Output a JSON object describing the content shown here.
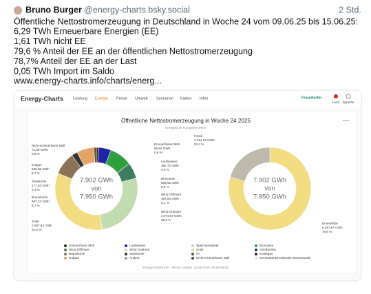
{
  "post": {
    "author": "Bruno Burger",
    "handle": "@energy-charts.bsky.social",
    "time": "2 Std.",
    "lines": [
      "Öffentliche Nettostromerzeugung in Deutschland in Woche 24 vom 09.06.25 bis 15.06.25:",
      "6,29 TWh Erneuerbare Energien (EE)",
      "1,61 TWh nicht EE",
      "79,6 % Anteil der EE an der öffentlichen Nettostromerzeugung",
      "78,7% Anteil der EE an der Last",
      "0,05 TWh Import im Saldo",
      "www.energy-charts.info/charts/energ..."
    ]
  },
  "card": {
    "logo": "Energy-Charts",
    "menu": [
      "Leistung",
      "Energie",
      "Preise",
      "Umwelt",
      "Szenarien",
      "Karten",
      "Infos"
    ],
    "brand": "Fraunhofer",
    "land": "Land",
    "sprache": "Sprache",
    "title": "Öffentliche Nettostromerzeugung in Woche 24 2025",
    "subtitle": "Energetisch korrigierte Werte",
    "center": [
      "7.902 GWh",
      "von",
      "7.950 GWh"
    ],
    "charts": [
      {
        "type": "donut",
        "segments": [
          {
            "name": "Erneuerbarer Müll",
            "value": 66.82,
            "value_label": "66,82 GWh",
            "percent": "0,8 %",
            "color": "#3b2a10"
          },
          {
            "name": "Laufwasser",
            "value": 380.72,
            "value_label": "380,72 GWh",
            "percent": "4,8 %",
            "color": "#1f24a8"
          },
          {
            "name": "Biomasse",
            "value": 682.92,
            "value_label": "682,92 GWh",
            "percent": "8,6 %",
            "color": "#2f9e3c"
          },
          {
            "name": "Wind Offshore",
            "value": 484.64,
            "value_label": "484,64 GWh",
            "percent": "6,1 %",
            "color": "#3f7d63"
          },
          {
            "name": "Wind Onshore",
            "value": 2074.67,
            "value_label": "2.074,67 GWh",
            "percent": "26,3 %",
            "color": "#c3dbb0"
          },
          {
            "name": "Solar",
            "value": 2567.94,
            "value_label": "2.567,94 GWh",
            "percent": "32,5 %",
            "color": "#f2dc82"
          },
          {
            "name": "Braunkohle",
            "value": 687.23,
            "value_label": "687,23 GWh",
            "percent": "8,7 %",
            "color": "#8a7357"
          },
          {
            "name": "Steinkohle",
            "value": 177.83,
            "value_label": "177,83 GWh",
            "percent": "2,3 %",
            "color": "#333333"
          },
          {
            "name": "Erdgas",
            "value": 526.85,
            "value_label": "526,85 GWh",
            "percent": "6,7 %",
            "color": "#e3a468"
          },
          {
            "name": "Nicht-erneuerbarer Müll",
            "value": 73.35,
            "value_label": "73,35 GWh",
            "percent": "0,9 %",
            "color": "#5a4628"
          }
        ]
      },
      {
        "type": "donut",
        "segments": [
          {
            "name": "Erneuerbar",
            "value": 6287.67,
            "value_label": "6.287,67 GWh",
            "percent": "79,6 %",
            "color": "#f2dc82"
          },
          {
            "name": "Fossil",
            "value": 1614.33,
            "value_label": "1.614,33 GWh",
            "percent": "20,4 %",
            "color": "#bfb8ac"
          }
        ]
      }
    ],
    "legend": [
      {
        "name": "Erneuerbarer Müll",
        "color": "#3b2a10"
      },
      {
        "name": "Laufwasser",
        "color": "#1f24a8"
      },
      {
        "name": "Speicherwasser",
        "color": "#c9c9c9"
      },
      {
        "name": "Biomasse",
        "color": "#2f9e3c"
      },
      {
        "name": "Wind Offshore",
        "color": "#3f7d63"
      },
      {
        "name": "Wind Onshore",
        "color": "#c3dbb0"
      },
      {
        "name": "Solar",
        "color": "#f2dc82"
      },
      {
        "name": "Geothermie",
        "color": "#1c2a6e"
      },
      {
        "name": "Braunkohle",
        "color": "#8a7357"
      },
      {
        "name": "Steinkohle",
        "color": "#333333"
      },
      {
        "name": "Öl",
        "color": "#555555"
      },
      {
        "name": "Kohlegas",
        "color": "#222222"
      },
      {
        "name": "Erdgas",
        "color": "#e3a468"
      },
      {
        "name": "Andere",
        "color": "#999999"
      },
      {
        "name": "Nicht-erneuerbarer Müll",
        "color": "#5a4628"
      },
      {
        "name": "Grenzüberschreitender Stromhandel",
        "color": "#dfe8d4"
      }
    ],
    "footer": "Energy-Charts.info - letztes Update: 16.06.2025, 06:55 MESZ"
  }
}
